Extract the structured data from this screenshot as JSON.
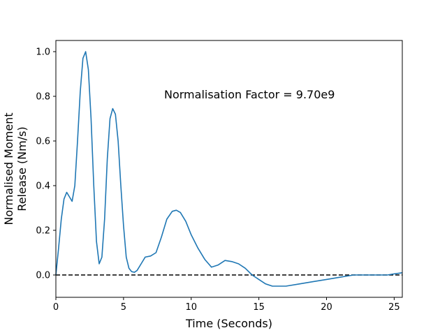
{
  "chart_data": {
    "type": "line",
    "title": "",
    "xlabel": "Time (Seconds)",
    "ylabel_lines": [
      "Normalised Moment",
      "Release (Nm/s)"
    ],
    "xlim": [
      0,
      25.6
    ],
    "ylim": [
      -0.1,
      1.05
    ],
    "xticks": [
      0,
      5,
      10,
      15,
      20,
      25
    ],
    "yticks": [
      0.0,
      0.2,
      0.4,
      0.6,
      0.8,
      1.0
    ],
    "grid": false,
    "annotation": {
      "text": "Normalisation Factor = 9.70e9",
      "x": 8.0,
      "y": 0.81
    },
    "reference_line": {
      "y": 0.0,
      "style": "dashed",
      "color": "#000000"
    },
    "series": [
      {
        "color": "#1f77b4",
        "x": [
          0,
          0.2,
          0.4,
          0.6,
          0.8,
          1.0,
          1.2,
          1.4,
          1.6,
          1.8,
          2.0,
          2.2,
          2.4,
          2.6,
          2.8,
          3.0,
          3.2,
          3.4,
          3.6,
          3.8,
          4.0,
          4.2,
          4.4,
          4.6,
          4.8,
          5.0,
          5.2,
          5.4,
          5.6,
          5.8,
          6.0,
          6.3,
          6.6,
          7.0,
          7.4,
          7.8,
          8.2,
          8.6,
          8.9,
          9.2,
          9.6,
          10.0,
          10.5,
          11.0,
          11.5,
          12.0,
          12.5,
          13.0,
          13.5,
          14.0,
          14.5,
          15.0,
          15.5,
          16.0,
          16.5,
          17.0,
          18.0,
          19.0,
          20.0,
          21.0,
          22.0,
          23.0,
          24.0,
          24.5,
          25.0,
          25.6
        ],
        "y": [
          0.0,
          0.12,
          0.25,
          0.34,
          0.37,
          0.35,
          0.33,
          0.4,
          0.6,
          0.82,
          0.97,
          1.0,
          0.92,
          0.7,
          0.4,
          0.15,
          0.05,
          0.08,
          0.25,
          0.52,
          0.7,
          0.745,
          0.72,
          0.6,
          0.4,
          0.22,
          0.08,
          0.03,
          0.015,
          0.012,
          0.02,
          0.05,
          0.08,
          0.085,
          0.1,
          0.17,
          0.25,
          0.285,
          0.29,
          0.28,
          0.24,
          0.18,
          0.12,
          0.07,
          0.035,
          0.045,
          0.065,
          0.06,
          0.05,
          0.03,
          0.0,
          -0.02,
          -0.04,
          -0.05,
          -0.05,
          -0.05,
          -0.04,
          -0.03,
          -0.02,
          -0.01,
          0.0,
          0.0,
          0.0,
          0.0,
          0.005,
          0.01
        ]
      }
    ]
  }
}
